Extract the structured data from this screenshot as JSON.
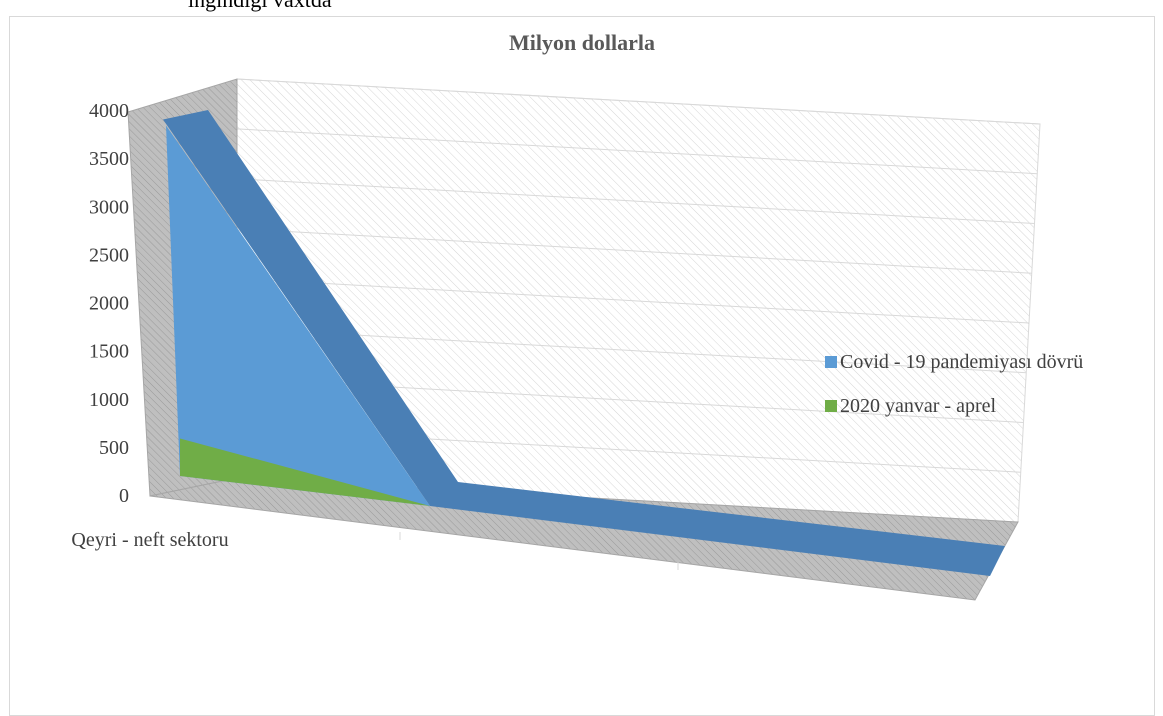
{
  "header_fragment": "ıngındığı vaxtda",
  "chart_data": {
    "type": "area",
    "title": "Milyon dollarla",
    "categories": [
      "Qeyri - neft sektoru",
      "",
      ""
    ],
    "yticks": [
      0,
      500,
      1000,
      1500,
      2000,
      2500,
      3000,
      3500,
      4000
    ],
    "ylim": [
      0,
      4000
    ],
    "legend_position": "right",
    "series": [
      {
        "name": "Covid - 19 pandemiyası dövrü",
        "values": [
          3850,
          0,
          0
        ],
        "color": "#5b9bd5"
      },
      {
        "name": "2020 yanvar - aprel",
        "values": [
          650,
          0,
          0
        ],
        "color": "#70ad47"
      }
    ],
    "gridlines": true
  }
}
